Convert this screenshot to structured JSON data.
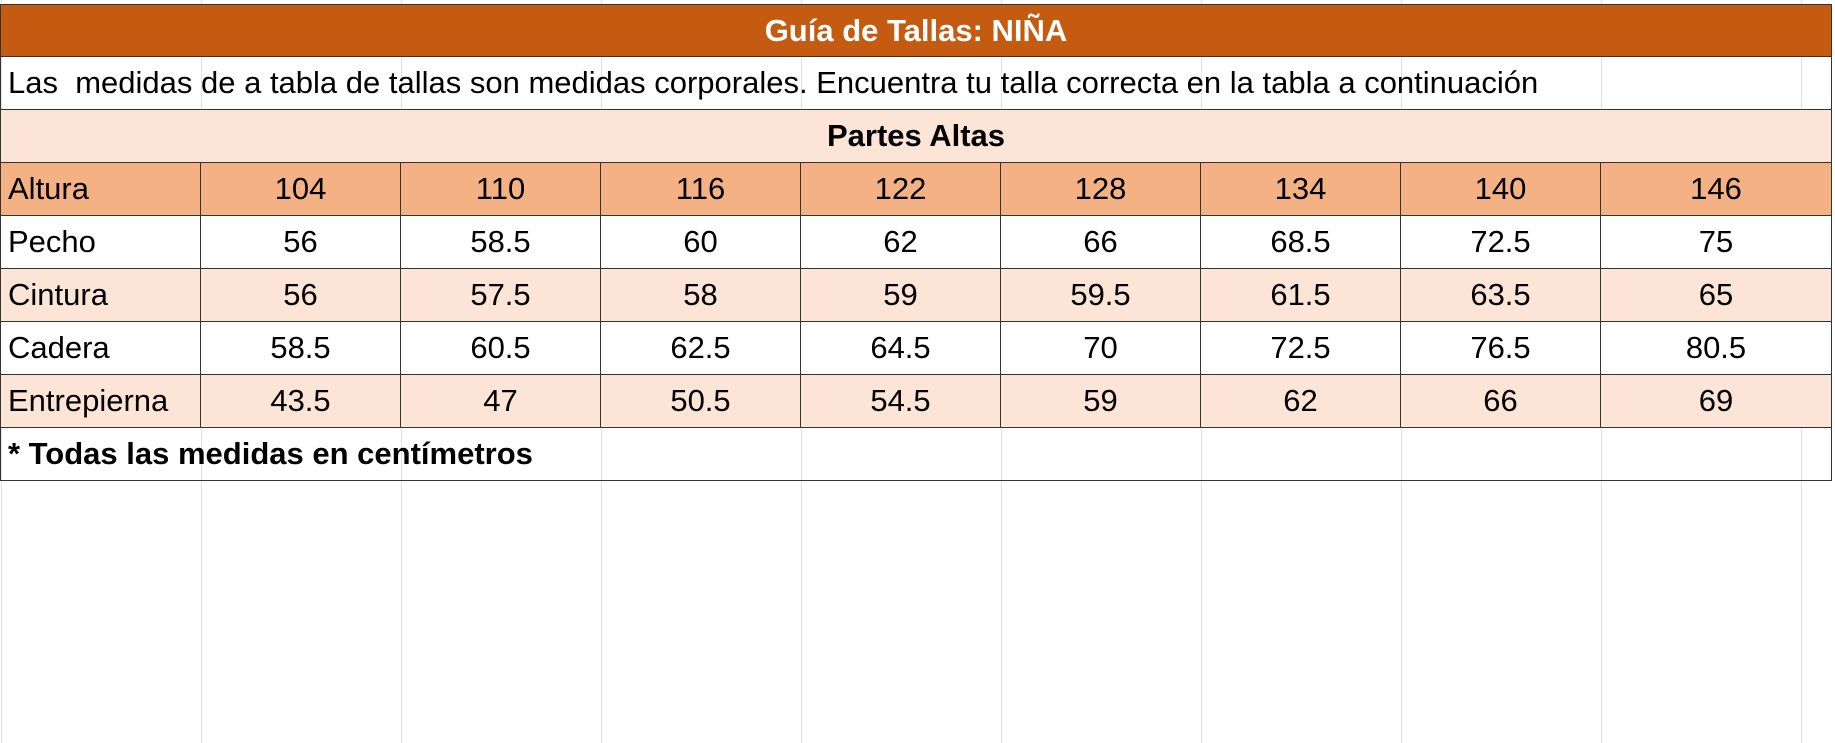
{
  "header": {
    "title": "Guía de Tallas: NIÑA",
    "intro": "Las  medidas de a tabla de tallas son medidas corporales. Encuentra tu talla correcta en la tabla a continuación",
    "section": "Partes Altas"
  },
  "table": {
    "rows": [
      {
        "label": "Altura",
        "values": [
          104,
          110,
          116,
          122,
          128,
          134,
          140,
          146
        ]
      },
      {
        "label": "Pecho",
        "values": [
          56,
          58.5,
          60,
          62,
          66,
          68.5,
          72.5,
          75
        ]
      },
      {
        "label": "Cintura",
        "values": [
          56,
          57.5,
          58,
          59,
          59.5,
          61.5,
          63.5,
          65
        ]
      },
      {
        "label": "Cadera",
        "values": [
          58.5,
          60.5,
          62.5,
          64.5,
          70,
          72.5,
          76.5,
          80.5
        ]
      },
      {
        "label": "Entrepierna",
        "values": [
          43.5,
          47,
          50.5,
          54.5,
          59,
          62,
          66,
          69
        ]
      }
    ]
  },
  "note": "* Todas las medidas en centímetros"
}
